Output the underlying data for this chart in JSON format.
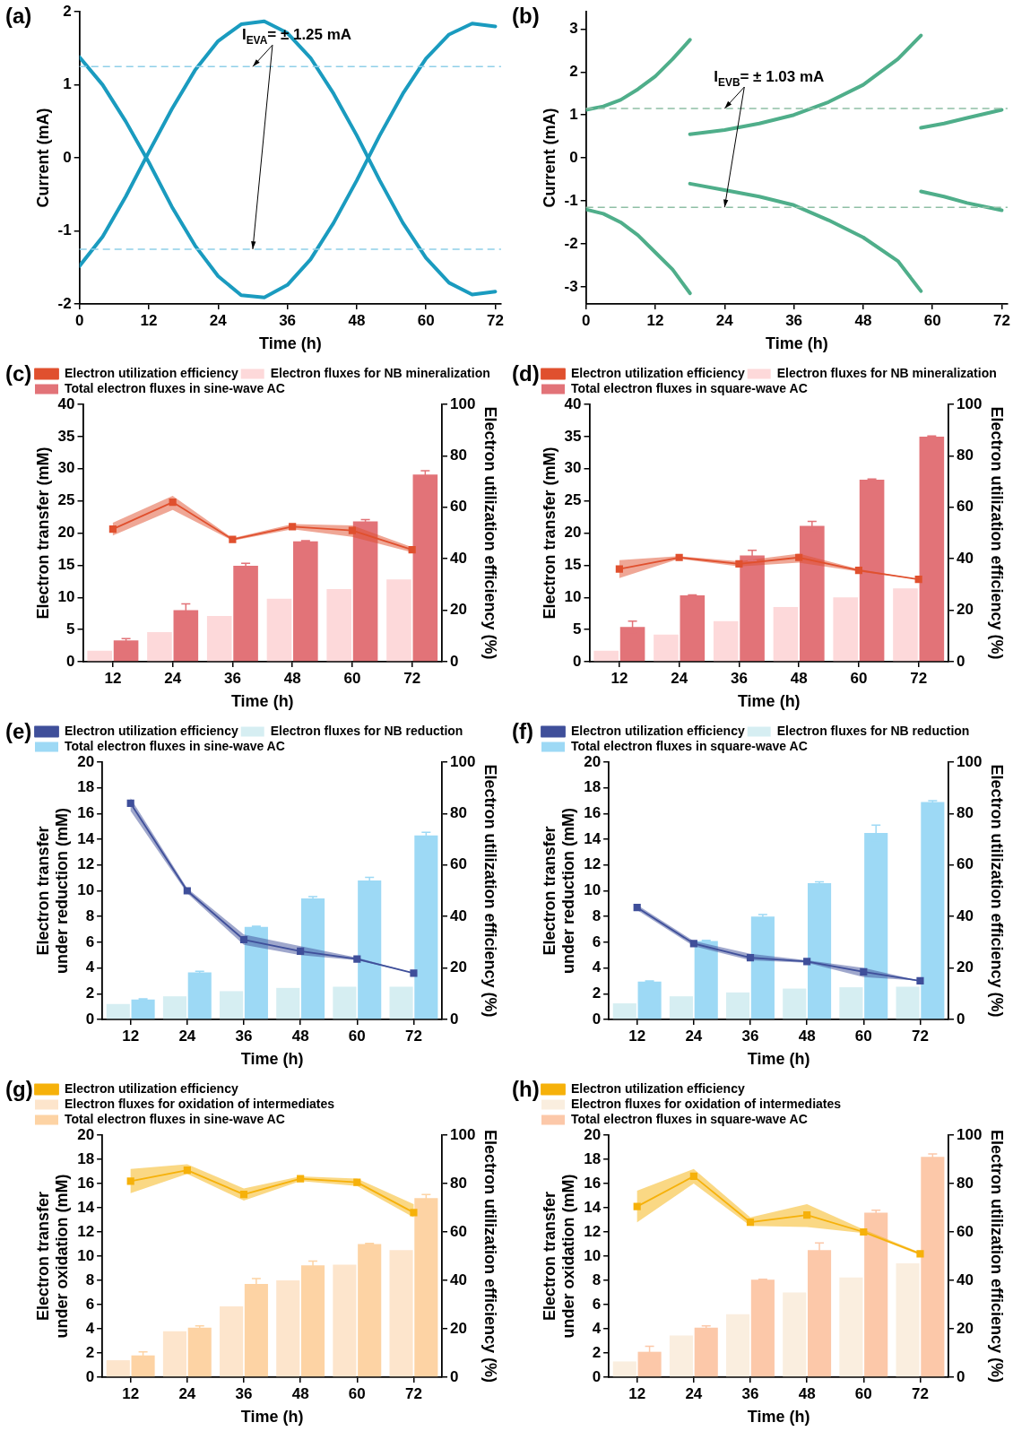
{
  "chart_data": [
    {
      "type": "line",
      "title": "(a)",
      "xlabel": "Time (h)",
      "ylabel": "Current (mA)",
      "x": [
        0,
        4,
        8,
        12,
        16,
        20,
        24,
        28,
        32,
        36,
        40,
        44,
        48,
        52,
        56,
        60,
        64,
        68,
        72
      ],
      "xlim": [
        0,
        73
      ],
      "xticks": [
        0,
        12,
        24,
        36,
        48,
        60,
        72
      ],
      "ylim": [
        -2,
        2
      ],
      "yticks": [
        -2,
        -1,
        0,
        1,
        2
      ],
      "grid": false,
      "legend": false,
      "marker": "none",
      "series": [
        {
          "color": "#1a9bbf",
          "values": [
            1.38,
            1.0,
            0.5,
            -0.06,
            -0.67,
            -1.2,
            -1.62,
            -1.88,
            -1.91,
            -1.74,
            -1.39,
            -0.89,
            -0.31,
            0.31,
            0.88,
            1.36,
            1.69,
            1.84,
            1.8
          ]
        },
        {
          "color": "#1a9bbf",
          "values": [
            -1.48,
            -1.08,
            -0.53,
            0.08,
            0.67,
            1.2,
            1.6,
            1.83,
            1.87,
            1.71,
            1.37,
            0.88,
            0.31,
            -0.31,
            -0.89,
            -1.37,
            -1.71,
            -1.87,
            -1.83
          ]
        }
      ],
      "ref_lines": [
        {
          "axis": "y",
          "value": 1.25,
          "color": "#8fd0e8",
          "line_style": "dashed"
        },
        {
          "axis": "y",
          "value": -1.25,
          "color": "#8fd0e8",
          "line_style": "dashed"
        }
      ],
      "annotations": [
        {
          "text": "I$_{EVA}$= ± 1.25 mA",
          "x": 30,
          "y": 1.25
        }
      ]
    },
    {
      "type": "line",
      "title": "(b)",
      "xlabel": "Time (h)",
      "ylabel": "Current (mA)",
      "xlim": [
        0,
        73
      ],
      "xticks": [
        0,
        12,
        24,
        36,
        48,
        60,
        72
      ],
      "ylim": [
        -3.4,
        3.4
      ],
      "yticks": [
        -3,
        -2,
        -1,
        0,
        1,
        2,
        3
      ],
      "grid": false,
      "legend": false,
      "marker": "none",
      "series": [
        {
          "color": "#4fae8a",
          "x": [
            0,
            3,
            6,
            9,
            12,
            15,
            18
          ],
          "values": [
            1.12,
            1.2,
            1.35,
            1.6,
            1.9,
            2.3,
            2.75
          ]
        },
        {
          "color": "#4fae8a",
          "x": [
            18,
            24,
            30,
            36,
            42,
            48,
            54,
            58
          ],
          "values": [
            0.55,
            0.65,
            0.8,
            1.0,
            1.3,
            1.7,
            2.3,
            2.85
          ]
        },
        {
          "color": "#4fae8a",
          "x": [
            58,
            62,
            66,
            72
          ],
          "values": [
            0.7,
            0.8,
            0.93,
            1.12
          ]
        },
        {
          "color": "#4fae8a",
          "x": [
            0,
            3,
            6,
            9,
            12,
            15,
            18
          ],
          "values": [
            -1.2,
            -1.3,
            -1.5,
            -1.8,
            -2.2,
            -2.6,
            -3.15
          ]
        },
        {
          "color": "#4fae8a",
          "x": [
            18,
            24,
            30,
            36,
            42,
            48,
            54,
            58
          ],
          "values": [
            -0.6,
            -0.75,
            -0.9,
            -1.1,
            -1.45,
            -1.85,
            -2.4,
            -3.1
          ]
        },
        {
          "color": "#4fae8a",
          "x": [
            58,
            62,
            66,
            72
          ],
          "values": [
            -0.78,
            -0.9,
            -1.05,
            -1.22
          ]
        }
      ],
      "ref_lines": [
        {
          "axis": "y",
          "value": 1.15,
          "color": "#8fbfa5",
          "line_style": "dashed"
        },
        {
          "axis": "y",
          "value": -1.15,
          "color": "#8fbfa5",
          "line_style": "dashed"
        }
      ],
      "annotations": [
        {
          "text": "I$_{EVB}$= ± 1.03 mA",
          "x": 24,
          "y": 1.15
        }
      ]
    },
    {
      "type": "bar",
      "title": "(c)",
      "xlabel": "Time (h)",
      "ylabel": "Electron transfer (mM)",
      "y2label": "Electron utilization efficiency (%)",
      "categories": [
        "12",
        "24",
        "36",
        "48",
        "60",
        "72"
      ],
      "ylim": [
        0,
        40
      ],
      "yticks": [
        0,
        5,
        10,
        15,
        20,
        25,
        30,
        35,
        40
      ],
      "y2lim": [
        0,
        100
      ],
      "y2ticks": [
        0,
        20,
        40,
        60,
        80,
        100
      ],
      "grid": false,
      "legend": "top left",
      "marker": "square",
      "series": [
        {
          "name": "Electron fluxes for NB mineralization",
          "color": "#fdd9da",
          "values": [
            1.7,
            4.6,
            7.1,
            9.8,
            11.3,
            12.8
          ]
        },
        {
          "name": "Total electron fluxes in sine-wave AC",
          "color": "#e27378",
          "values": [
            3.3,
            8.0,
            14.9,
            18.7,
            21.8,
            29.1
          ],
          "errors": [
            0.3,
            1.0,
            0.4,
            0.1,
            0.3,
            0.6
          ]
        },
        {
          "type": "line",
          "axis": "y2",
          "name": "Electron utilization efficiency",
          "color": "#e0502e",
          "values": [
            51.5,
            62,
            47.5,
            52.5,
            51,
            43.5
          ],
          "lower": [
            49,
            59,
            47,
            51.5,
            48.5,
            42.5
          ],
          "upper": [
            54,
            64.5,
            48,
            53.5,
            53,
            44.5
          ]
        }
      ]
    },
    {
      "type": "bar",
      "title": "(d)",
      "xlabel": "Time (h)",
      "ylabel": "Electron transfer (mM)",
      "y2label": "Electron utilization efficiency (%)",
      "categories": [
        "12",
        "24",
        "36",
        "48",
        "60",
        "72"
      ],
      "ylim": [
        0,
        40
      ],
      "yticks": [
        0,
        5,
        10,
        15,
        20,
        25,
        30,
        35,
        40
      ],
      "y2lim": [
        0,
        100
      ],
      "y2ticks": [
        0,
        20,
        40,
        60,
        80,
        100
      ],
      "grid": false,
      "legend": "top left",
      "marker": "square",
      "series": [
        {
          "name": "Electron fluxes for NB mineralization",
          "color": "#fdd9da",
          "values": [
            1.7,
            4.2,
            6.3,
            8.5,
            10.0,
            11.4
          ]
        },
        {
          "name": "Total electron fluxes in square-wave AC",
          "color": "#e27378",
          "values": [
            5.4,
            10.3,
            16.5,
            21.1,
            28.3,
            35.0
          ],
          "errors": [
            0.9,
            0.1,
            0.8,
            0.7,
            0.1,
            0.1
          ]
        },
        {
          "type": "line",
          "axis": "y2",
          "name": "Electron utilization efficiency",
          "color": "#e0502e",
          "values": [
            36,
            40.5,
            38,
            40.5,
            35.5,
            32
          ],
          "lower": [
            32.5,
            40,
            37,
            38.5,
            35,
            32
          ],
          "upper": [
            39.5,
            41,
            39,
            42,
            36,
            32
          ]
        }
      ]
    },
    {
      "type": "bar",
      "title": "(e)",
      "xlabel": "Time (h)",
      "ylabel": "Electron transfer under reduction (mM)",
      "y2label": "Electron utilization efficiency (%)",
      "categories": [
        "12",
        "24",
        "36",
        "48",
        "60",
        "72"
      ],
      "ylim": [
        0,
        20
      ],
      "yticks": [
        0,
        2,
        4,
        6,
        8,
        10,
        12,
        14,
        16,
        18,
        20
      ],
      "y2lim": [
        0,
        100
      ],
      "y2ticks": [
        0,
        20,
        40,
        60,
        80,
        100
      ],
      "grid": false,
      "legend": "top left",
      "marker": "square",
      "series": [
        {
          "name": "Electron fluxes for NB reduction",
          "color": "#d6eef2",
          "values": [
            1.2,
            1.8,
            2.2,
            2.45,
            2.55,
            2.55
          ]
        },
        {
          "name": "Total electron fluxes in sine-wave AC",
          "color": "#9dd9f5",
          "values": [
            1.55,
            3.65,
            7.2,
            9.4,
            10.8,
            14.3
          ],
          "errors": [
            0.05,
            0.1,
            0.05,
            0.15,
            0.25,
            0.25
          ]
        },
        {
          "type": "line",
          "axis": "y2",
          "name": "Electron utilization efficiency",
          "color": "#3f4f9a",
          "values": [
            84,
            50,
            31,
            26.5,
            23.5,
            18
          ],
          "lower": [
            81,
            49,
            29,
            25,
            23,
            18
          ],
          "upper": [
            86,
            51,
            33,
            28.5,
            24,
            18
          ]
        }
      ]
    },
    {
      "type": "bar",
      "title": "(f)",
      "xlabel": "Time (h)",
      "ylabel": "Electron transfer under reduction (mM)",
      "y2label": "Electron utilization efficiency (%)",
      "categories": [
        "12",
        "24",
        "36",
        "48",
        "60",
        "72"
      ],
      "ylim": [
        0,
        20
      ],
      "yticks": [
        0,
        2,
        4,
        6,
        8,
        10,
        12,
        14,
        16,
        18,
        20
      ],
      "y2lim": [
        0,
        100
      ],
      "y2ticks": [
        0,
        20,
        40,
        60,
        80,
        100
      ],
      "grid": false,
      "legend": "top left",
      "marker": "square",
      "series": [
        {
          "name": "Electron fluxes for NB reduction",
          "color": "#d6eef2",
          "values": [
            1.25,
            1.8,
            2.1,
            2.4,
            2.5,
            2.55
          ]
        },
        {
          "name": "Total electron fluxes in square-wave AC",
          "color": "#9dd9f5",
          "values": [
            2.95,
            6.1,
            8.0,
            10.6,
            14.5,
            16.9
          ],
          "errors": [
            0.05,
            0.05,
            0.15,
            0.1,
            0.6,
            0.1
          ]
        },
        {
          "type": "line",
          "axis": "y2",
          "name": "Electron utilization efficiency",
          "color": "#3f4f9a",
          "values": [
            43.5,
            29.5,
            24,
            22.5,
            18.5,
            15
          ],
          "lower": [
            42.5,
            28.5,
            23,
            22,
            16.5,
            15
          ],
          "upper": [
            44.5,
            30.5,
            25.5,
            23,
            20,
            15
          ]
        }
      ]
    },
    {
      "type": "bar",
      "title": "(g)",
      "xlabel": "Time (h)",
      "ylabel": "Electron transfer under oxidation (mM)",
      "y2label": "Electron utilization efficiency (%)",
      "categories": [
        "12",
        "24",
        "36",
        "48",
        "60",
        "72"
      ],
      "ylim": [
        0,
        20
      ],
      "yticks": [
        0,
        2,
        4,
        6,
        8,
        10,
        12,
        14,
        16,
        18,
        20
      ],
      "y2lim": [
        0,
        100
      ],
      "y2ticks": [
        0,
        20,
        40,
        60,
        80,
        100
      ],
      "grid": false,
      "legend": "top left",
      "marker": "square",
      "series": [
        {
          "name": "Electron fluxes for oxidation of intermediates",
          "color": "#fde5cc",
          "values": [
            1.4,
            3.8,
            5.85,
            8.0,
            9.3,
            10.5
          ]
        },
        {
          "name": "Total electron fluxes in sine-wave AC",
          "color": "#fdd3a4",
          "values": [
            1.8,
            4.1,
            7.7,
            9.25,
            11.0,
            14.8
          ],
          "errors": [
            0.3,
            0.15,
            0.45,
            0.35,
            0.05,
            0.3
          ]
        },
        {
          "type": "line",
          "axis": "y2",
          "name": "Electron utilization efficiency",
          "color": "#f6b10a",
          "values": [
            81,
            85.5,
            75.5,
            82,
            80.5,
            68
          ],
          "lower": [
            76,
            84,
            73,
            81,
            79,
            66
          ],
          "upper": [
            86,
            88,
            78,
            83,
            82,
            71.5
          ]
        }
      ]
    },
    {
      "type": "bar",
      "title": "(h)",
      "xlabel": "Time (h)",
      "ylabel": "Electron transfer under oxidation (mM)",
      "y2label": "Electron utilization efficiency (%)",
      "categories": [
        "12",
        "24",
        "36",
        "48",
        "60",
        "72"
      ],
      "ylim": [
        0,
        20
      ],
      "yticks": [
        0,
        2,
        4,
        6,
        8,
        10,
        12,
        14,
        16,
        18,
        20
      ],
      "y2lim": [
        0,
        100
      ],
      "y2ticks": [
        0,
        20,
        40,
        60,
        80,
        100
      ],
      "grid": false,
      "legend": "top left",
      "marker": "square",
      "series": [
        {
          "name": "Electron fluxes for oxidation of intermediates",
          "color": "#faeedf",
          "values": [
            1.3,
            3.45,
            5.2,
            7.0,
            8.25,
            9.4
          ]
        },
        {
          "name": "Total electron fluxes in square-wave AC",
          "color": "#fcc8a9",
          "values": [
            2.1,
            4.1,
            8.05,
            10.5,
            13.6,
            18.2
          ],
          "errors": [
            0.45,
            0.15,
            0.05,
            0.6,
            0.2,
            0.25
          ]
        },
        {
          "type": "line",
          "axis": "y2",
          "name": "Electron utilization efficiency",
          "color": "#f6b10a",
          "values": [
            70.5,
            83,
            64,
            67,
            60,
            51
          ],
          "lower": [
            64,
            80,
            62.5,
            62,
            59.5,
            50.5
          ],
          "upper": [
            77,
            86,
            66,
            71.5,
            61,
            51.5
          ]
        }
      ]
    }
  ]
}
